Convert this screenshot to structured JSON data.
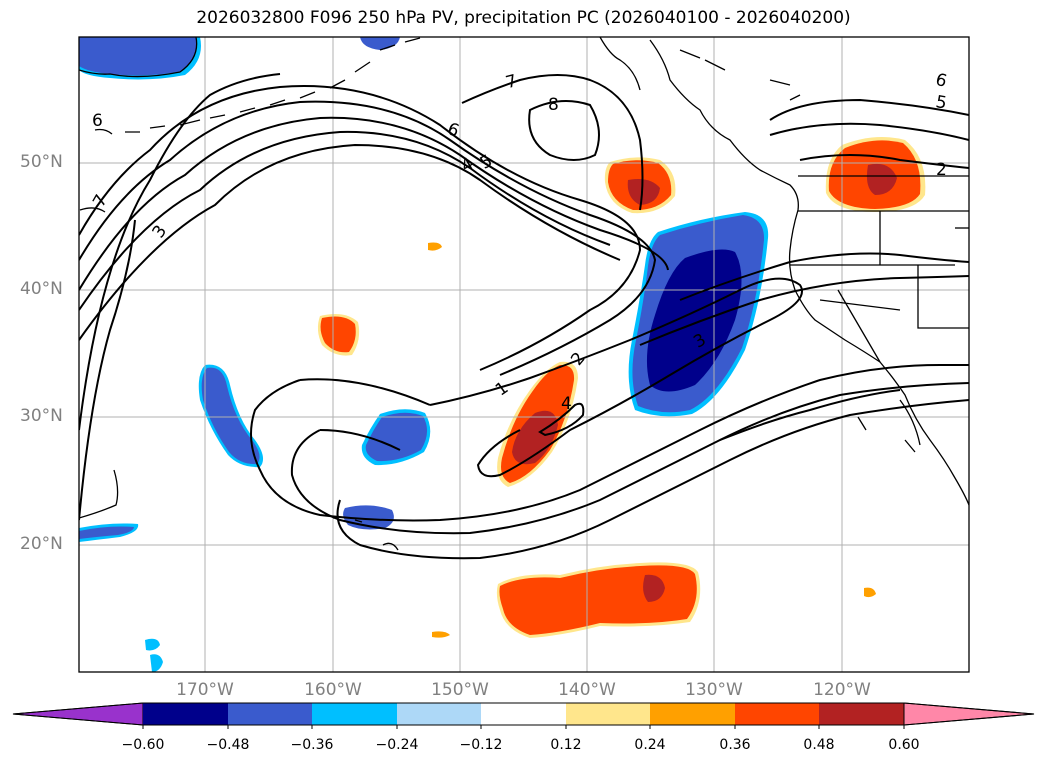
{
  "title": "2026032800 F096 250 hPa PV, precipitation PC (2026040100 - 2026040200)",
  "lat_labels": [
    "50°N",
    "40°N",
    "30°N",
    "20°N"
  ],
  "lon_labels": [
    "170°W",
    "160°W",
    "150°W",
    "140°W",
    "130°W",
    "120°W"
  ],
  "contour_labels": [
    "6",
    "7",
    "3",
    "6",
    "4",
    "5",
    "7",
    "8",
    "1",
    "2",
    "4",
    "3",
    "6",
    "5",
    "2"
  ],
  "colorbar": {
    "ticks": [
      "−0.60",
      "−0.48",
      "−0.36",
      "−0.24",
      "−0.12",
      "0.12",
      "0.24",
      "0.36",
      "0.48",
      "0.60"
    ],
    "colors": [
      "#9932cc",
      "#00008b",
      "#3a5bcd",
      "#00bfff",
      "#add8f7",
      "#ffffff",
      "#ffe68c",
      "#ffa000",
      "#ff4500",
      "#b22222",
      "#ff87a8"
    ]
  }
}
